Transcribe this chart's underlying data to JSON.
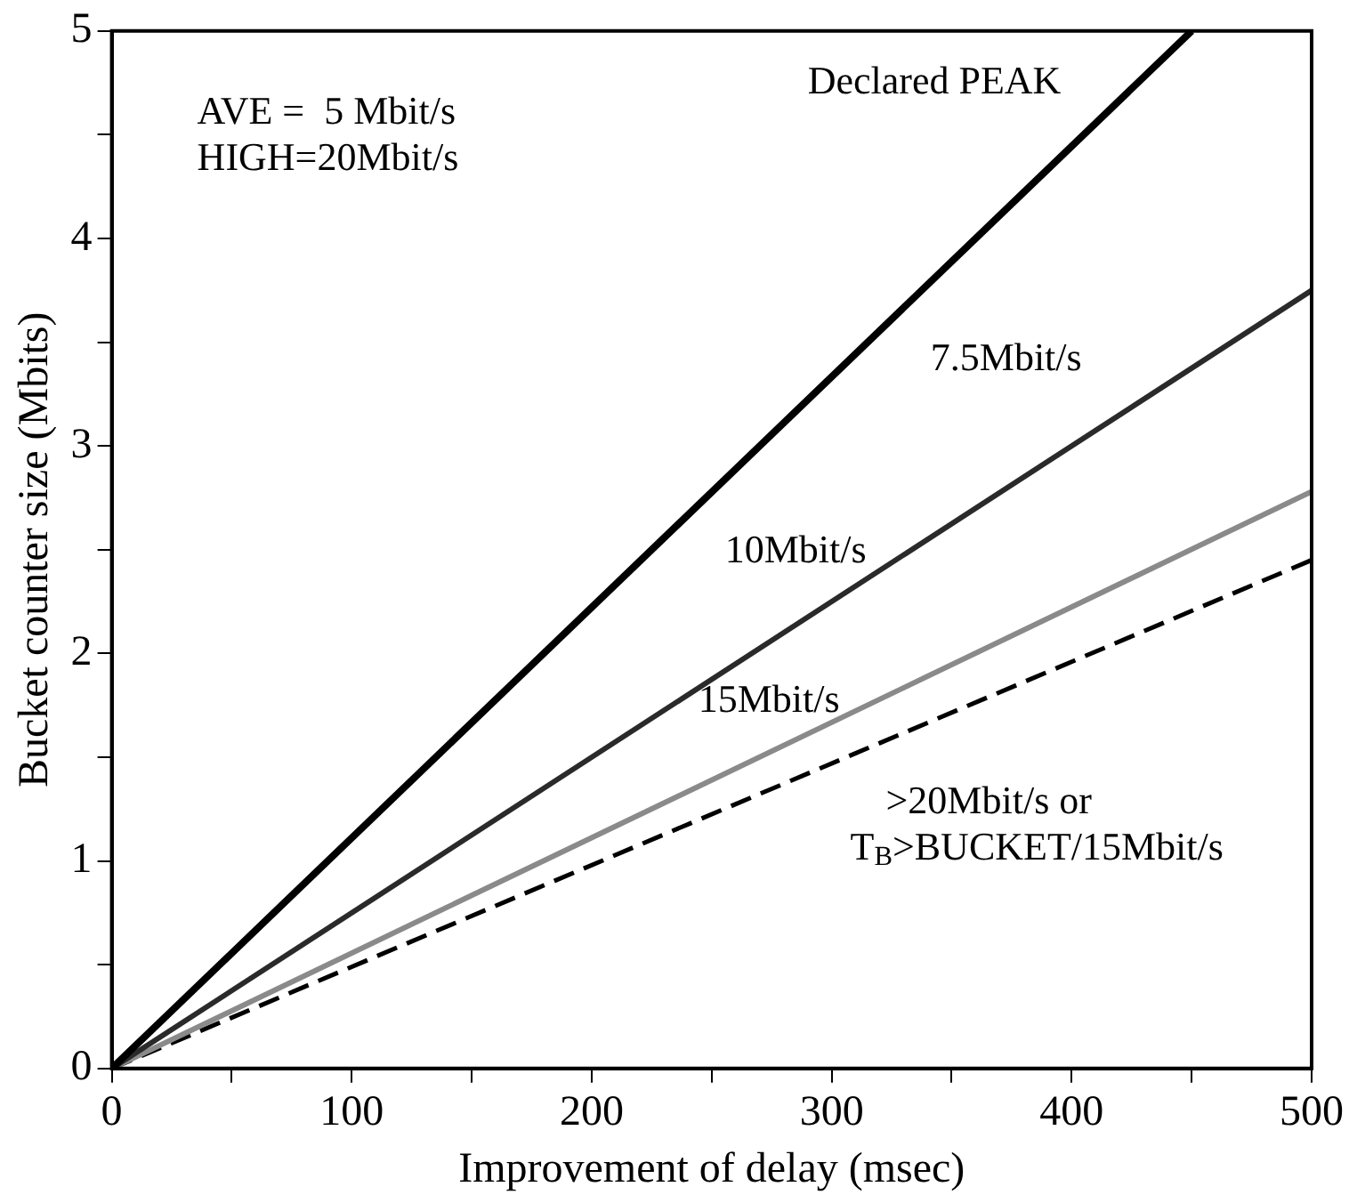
{
  "chart_data": {
    "type": "line",
    "xlabel": "Improvement of delay (msec)",
    "ylabel": "Bucket counter size (Mbits)",
    "xlim": [
      0,
      500
    ],
    "ylim": [
      0,
      5
    ],
    "xticks": [
      0,
      {
        "value": 50,
        "label": null
      },
      100,
      {
        "value": 150,
        "label": null
      },
      200,
      {
        "value": 250,
        "label": null
      },
      300,
      {
        "value": 350,
        "label": null
      },
      400,
      {
        "value": 450,
        "label": null
      },
      500
    ],
    "yticks": [
      0,
      {
        "value": 0.5,
        "label": null
      },
      1,
      {
        "value": 1.5,
        "label": null
      },
      2,
      {
        "value": 2.5,
        "label": null
      },
      3,
      {
        "value": 3.5,
        "label": null
      },
      4,
      {
        "value": 4.5,
        "label": null
      },
      5
    ],
    "legend": false,
    "marker": "none",
    "annotations": [
      "AVE =  5 Mbit/s",
      "HIGH=20Mbit/s",
      "Declared PEAK"
    ],
    "series": [
      {
        "name": "7.5Mbit/s",
        "color": "#000000",
        "line_style": "solid",
        "x": [
          0,
          450
        ],
        "values": [
          0,
          5
        ]
      },
      {
        "name": "10Mbit/s",
        "color": "#2a2a2a",
        "line_style": "solid",
        "x": [
          0,
          500
        ],
        "values": [
          0,
          3.75
        ]
      },
      {
        "name": "15Mbit/s",
        "color": "#8a8a8a",
        "line_style": "solid",
        "x": [
          0,
          500
        ],
        "values": [
          0,
          2.78
        ]
      },
      {
        "name": ">20Mbit/s or T$_{B}$>BUCKET/15Mbit/s",
        "color": "#000000",
        "line_style": "dashed",
        "x": [
          0,
          500
        ],
        "values": [
          0,
          2.45
        ]
      }
    ]
  }
}
